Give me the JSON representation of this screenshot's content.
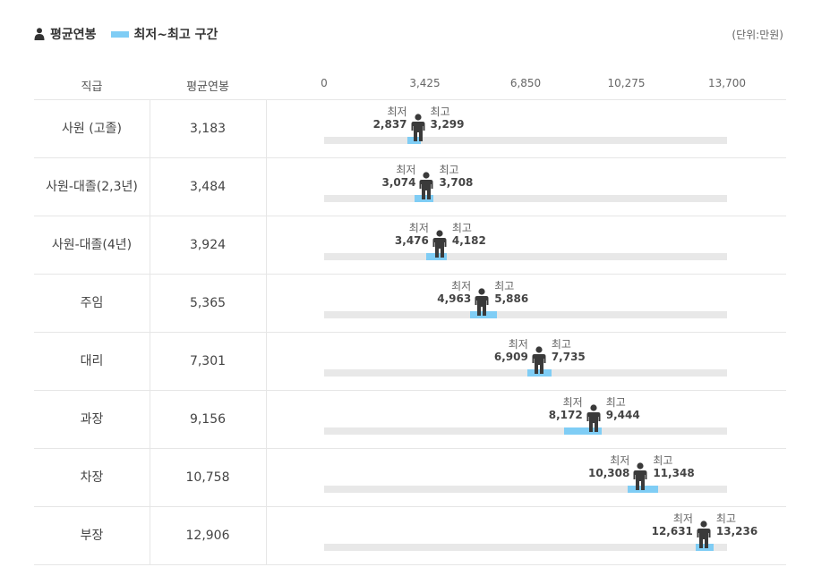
{
  "legend": {
    "avg_label": "평균연봉",
    "range_label": "최저~최고 구간"
  },
  "unit_label": "(단위:만원)",
  "headers": {
    "rank": "직급",
    "avg": "평균연봉"
  },
  "chart_data": {
    "type": "range",
    "xlim": [
      0,
      13700
    ],
    "ticks": [
      "0",
      "3,425",
      "6,850",
      "10,275",
      "13,700"
    ],
    "tick_values": [
      0,
      3425,
      6850,
      10275,
      13700
    ],
    "min_text": "최저",
    "max_text": "최고",
    "rows": [
      {
        "rank": "사원 (고졸)",
        "avg": 3183,
        "avg_label": "3,183",
        "min": 2837,
        "min_label": "2,837",
        "max": 3299,
        "max_label": "3,299"
      },
      {
        "rank": "사원-대졸(2,3년)",
        "avg": 3484,
        "avg_label": "3,484",
        "min": 3074,
        "min_label": "3,074",
        "max": 3708,
        "max_label": "3,708"
      },
      {
        "rank": "사원-대졸(4년)",
        "avg": 3924,
        "avg_label": "3,924",
        "min": 3476,
        "min_label": "3,476",
        "max": 4182,
        "max_label": "4,182"
      },
      {
        "rank": "주임",
        "avg": 5365,
        "avg_label": "5,365",
        "min": 4963,
        "min_label": "4,963",
        "max": 5886,
        "max_label": "5,886"
      },
      {
        "rank": "대리",
        "avg": 7301,
        "avg_label": "7,301",
        "min": 6909,
        "min_label": "6,909",
        "max": 7735,
        "max_label": "7,735"
      },
      {
        "rank": "과장",
        "avg": 9156,
        "avg_label": "9,156",
        "min": 8172,
        "min_label": "8,172",
        "max": 9444,
        "max_label": "9,444"
      },
      {
        "rank": "차장",
        "avg": 10758,
        "avg_label": "10,758",
        "min": 10308,
        "min_label": "10,308",
        "max": 11348,
        "max_label": "11,348"
      },
      {
        "rank": "부장",
        "avg": 12906,
        "avg_label": "12,906",
        "min": 12631,
        "min_label": "12,631",
        "max": 13236,
        "max_label": "13,236"
      }
    ]
  },
  "colors": {
    "range": "#7fcdf5",
    "track": "#e8e8e8",
    "person": "#3a3a3a"
  }
}
